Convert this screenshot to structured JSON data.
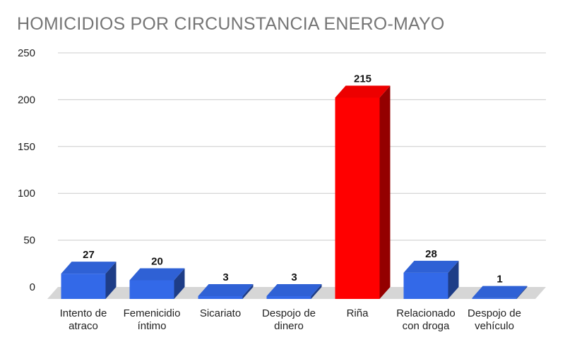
{
  "chart_data": {
    "type": "bar",
    "title": "HOMICIDIOS POR CIRCUNSTANCIA ENERO-MAYO",
    "xlabel": "",
    "ylabel": "",
    "ylim": [
      0,
      250
    ],
    "yticks": [
      0,
      50,
      100,
      150,
      200,
      250
    ],
    "grid": true,
    "legend": "none",
    "categories": [
      [
        "Intento de",
        "atraco"
      ],
      [
        "Femenicidio",
        "íntimo"
      ],
      [
        "Sicariato"
      ],
      [
        "Despojo de",
        "dinero"
      ],
      [
        "Riña"
      ],
      [
        "Relacionado",
        "con droga"
      ],
      [
        "Despojo de",
        "vehículo"
      ]
    ],
    "values": [
      27,
      20,
      3,
      3,
      215,
      28,
      1
    ],
    "data_labels": [
      "27",
      "20",
      "3",
      "3",
      "215",
      "28",
      "1"
    ],
    "colors": {
      "bar": "#3369e8",
      "highlight": "#ff0000",
      "grid": "#cccccc",
      "floor": "#d6d6d6",
      "title": "#757575"
    },
    "highlight_index": 4
  }
}
